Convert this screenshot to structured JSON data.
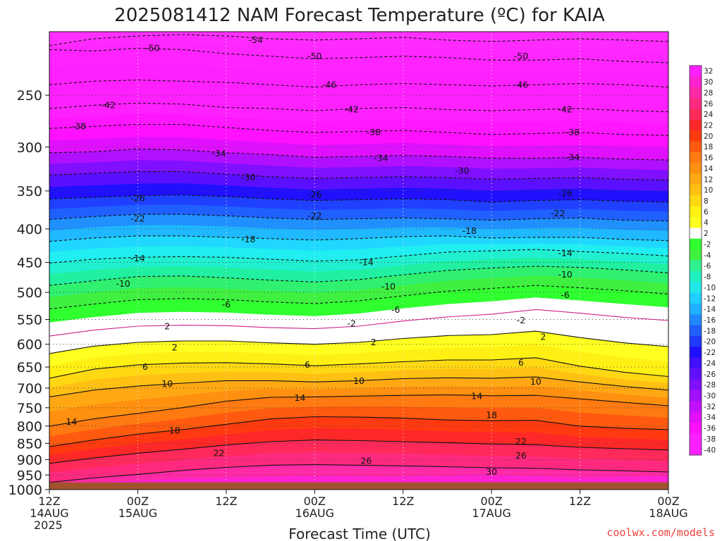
{
  "title": "2025081412 NAM Forecast Temperature (ºC) for KAIA",
  "credit": "coolwx.com/models",
  "chart_data": {
    "type": "heatmap",
    "title": "2025081412 NAM Forecast Temperature (ºC) for KAIA",
    "xlabel": "Forecast Time (UTC)",
    "x_ticks": [
      {
        "hour": 0,
        "lines": [
          "12Z",
          "14AUG",
          "2025"
        ]
      },
      {
        "hour": 12,
        "lines": [
          "00Z",
          "15AUG"
        ]
      },
      {
        "hour": 24,
        "lines": [
          "12Z"
        ]
      },
      {
        "hour": 36,
        "lines": [
          "00Z",
          "16AUG"
        ]
      },
      {
        "hour": 48,
        "lines": [
          "12Z"
        ]
      },
      {
        "hour": 60,
        "lines": [
          "00Z",
          "17AUG"
        ]
      },
      {
        "hour": 72,
        "lines": [
          "12Z"
        ]
      },
      {
        "hour": 84,
        "lines": [
          "00Z",
          "18AUG"
        ]
      }
    ],
    "xlim": [
      0,
      84
    ],
    "y_ticks": [
      250,
      300,
      350,
      400,
      450,
      500,
      550,
      600,
      650,
      700,
      750,
      800,
      850,
      900,
      950,
      1000
    ],
    "ylim": [
      200,
      1000
    ],
    "y_scale": "log-pressure",
    "grid": "dotted",
    "surface_pressure_hPa": 975,
    "colorbar": {
      "labels": [
        32,
        30,
        28,
        26,
        24,
        22,
        20,
        18,
        16,
        14,
        12,
        10,
        8,
        6,
        4,
        2,
        -2,
        -4,
        -6,
        -8,
        -10,
        -12,
        -14,
        -16,
        -18,
        -20,
        -22,
        -24,
        -26,
        -28,
        -30,
        -32,
        -34,
        -36,
        -38,
        -40
      ],
      "colors": [
        "#ff20ff",
        "#ff22d0",
        "#ff2aa6",
        "#ff2a80",
        "#ff2a5a",
        "#ff2828",
        "#ff3a10",
        "#ff5a10",
        "#ff7a10",
        "#ff9010",
        "#ffa814",
        "#ffc014",
        "#ffd814",
        "#fff014",
        "#ffff20",
        "#ffffff",
        "#30ff30",
        "#40f040",
        "#30f090",
        "#20f0c0",
        "#20e8e8",
        "#20d0ff",
        "#20b0ff",
        "#2088ff",
        "#2060ff",
        "#2038ff",
        "#2010ff",
        "#4010ff",
        "#6010ff",
        "#8010ff",
        "#a010ff",
        "#c010ff",
        "#e010ff",
        "#ff10ff",
        "#ff20ff",
        "#ff20ff"
      ]
    },
    "contours": [
      {
        "value": -54,
        "p": [
          210,
          205,
          203,
          202,
          203,
          205,
          206,
          205,
          204,
          206,
          207,
          206,
          205,
          206,
          207
        ]
      },
      {
        "value": -50,
        "p": [
          213,
          214,
          212,
          213,
          216,
          218,
          220,
          219,
          218,
          219,
          221,
          221,
          220,
          222,
          223
        ]
      },
      {
        "value": -46,
        "p": [
          241,
          238,
          237,
          238,
          239,
          241,
          243,
          241,
          240,
          241,
          242,
          241,
          240,
          241,
          243
        ]
      },
      {
        "value": -42,
        "p": [
          262,
          259,
          257,
          258,
          261,
          262,
          264,
          262,
          261,
          263,
          264,
          263,
          262,
          264,
          265
        ]
      },
      {
        "value": -38,
        "p": [
          281,
          279,
          277,
          277,
          280,
          283,
          285,
          284,
          283,
          285,
          287,
          286,
          285,
          287,
          288
        ]
      },
      {
        "value": -34,
        "p": [
          306,
          305,
          302,
          303,
          306,
          308,
          311,
          310,
          309,
          310,
          312,
          312,
          311,
          313,
          314
        ]
      },
      {
        "value": -30,
        "p": [
          331,
          329,
          327,
          327,
          330,
          333,
          335,
          334,
          333,
          334,
          336,
          335,
          334,
          336,
          337
        ]
      },
      {
        "value": -26,
        "p": [
          360,
          358,
          356,
          355,
          357,
          360,
          362,
          361,
          360,
          361,
          364,
          362,
          361,
          363,
          364
        ]
      },
      {
        "value": -22,
        "p": [
          387,
          383,
          380,
          380,
          382,
          385,
          387,
          386,
          385,
          386,
          388,
          386,
          385,
          388,
          389
        ]
      },
      {
        "value": -18,
        "p": [
          418,
          413,
          410,
          410,
          412,
          414,
          416,
          414,
          411,
          410,
          413,
          412,
          412,
          415,
          417
        ]
      },
      {
        "value": -14,
        "p": [
          451,
          445,
          442,
          441,
          442,
          445,
          448,
          446,
          440,
          434,
          432,
          430,
          433,
          436,
          440
        ]
      },
      {
        "value": -10,
        "p": [
          488,
          480,
          473,
          472,
          475,
          479,
          482,
          478,
          470,
          463,
          459,
          456,
          458,
          462,
          467
        ]
      },
      {
        "value": -6,
        "p": [
          530,
          521,
          513,
          511,
          513,
          517,
          520,
          515,
          506,
          498,
          493,
          488,
          492,
          497,
          503
        ]
      },
      {
        "value": -2,
        "p": [
          583,
          571,
          563,
          561,
          562,
          566,
          568,
          563,
          553,
          545,
          540,
          531,
          538,
          546,
          552
        ],
        "style": "magenta"
      },
      {
        "value": 2,
        "p": [
          620,
          604,
          596,
          593,
          593,
          597,
          600,
          596,
          588,
          582,
          580,
          573,
          586,
          597,
          605
        ]
      },
      {
        "value": 6,
        "p": [
          676,
          655,
          645,
          641,
          640,
          643,
          647,
          643,
          638,
          634,
          634,
          629,
          648,
          662,
          672
        ]
      },
      {
        "value": 10,
        "p": [
          722,
          705,
          695,
          688,
          682,
          682,
          685,
          682,
          677,
          675,
          676,
          673,
          685,
          696,
          705
        ]
      },
      {
        "value": 14,
        "p": [
          800,
          780,
          765,
          750,
          733,
          723,
          722,
          720,
          718,
          717,
          719,
          718,
          727,
          736,
          745
        ]
      },
      {
        "value": 18,
        "p": [
          860,
          840,
          823,
          810,
          795,
          780,
          774,
          775,
          778,
          783,
          785,
          784,
          800,
          806,
          810
        ]
      },
      {
        "value": 22,
        "p": [
          912,
          895,
          880,
          868,
          855,
          845,
          840,
          842,
          845,
          848,
          852,
          854,
          862,
          866,
          870
        ]
      },
      {
        "value": 26,
        "p": [
          975,
          960,
          948,
          935,
          925,
          918,
          916,
          918,
          920,
          923,
          926,
          928,
          933,
          936,
          940
        ]
      }
    ],
    "contour_labels": [
      {
        "value": -50,
        "x_hour": 14,
        "p": 212
      },
      {
        "value": -54,
        "x_hour": 28,
        "p": 206
      },
      {
        "value": -50,
        "x_hour": 36,
        "p": 218
      },
      {
        "value": -50,
        "x_hour": 64,
        "p": 218
      },
      {
        "value": -46,
        "x_hour": 38,
        "p": 241
      },
      {
        "value": -46,
        "x_hour": 64,
        "p": 241
      },
      {
        "value": -42,
        "x_hour": 8,
        "p": 259
      },
      {
        "value": -42,
        "x_hour": 41,
        "p": 263
      },
      {
        "value": -42,
        "x_hour": 70,
        "p": 263
      },
      {
        "value": -38,
        "x_hour": 4,
        "p": 279
      },
      {
        "value": -38,
        "x_hour": 44,
        "p": 285
      },
      {
        "value": -38,
        "x_hour": 71,
        "p": 285
      },
      {
        "value": -34,
        "x_hour": 23,
        "p": 307
      },
      {
        "value": -34,
        "x_hour": 45,
        "p": 312
      },
      {
        "value": -34,
        "x_hour": 71,
        "p": 311
      },
      {
        "value": -30,
        "x_hour": 27,
        "p": 334
      },
      {
        "value": -30,
        "x_hour": 56,
        "p": 326
      },
      {
        "value": -26,
        "x_hour": 12,
        "p": 359
      },
      {
        "value": -26,
        "x_hour": 36,
        "p": 355
      },
      {
        "value": -26,
        "x_hour": 70,
        "p": 353
      },
      {
        "value": -22,
        "x_hour": 12,
        "p": 386
      },
      {
        "value": -22,
        "x_hour": 36,
        "p": 382
      },
      {
        "value": -22,
        "x_hour": 69,
        "p": 379
      },
      {
        "value": -18,
        "x_hour": 27,
        "p": 415
      },
      {
        "value": -18,
        "x_hour": 57,
        "p": 403
      },
      {
        "value": -14,
        "x_hour": 12,
        "p": 444
      },
      {
        "value": -14,
        "x_hour": 43,
        "p": 450
      },
      {
        "value": -14,
        "x_hour": 70,
        "p": 436
      },
      {
        "value": -10,
        "x_hour": 10,
        "p": 485
      },
      {
        "value": -10,
        "x_hour": 46,
        "p": 490
      },
      {
        "value": -10,
        "x_hour": 70,
        "p": 470
      },
      {
        "value": -6,
        "x_hour": 24,
        "p": 522
      },
      {
        "value": -6,
        "x_hour": 47,
        "p": 532
      },
      {
        "value": -6,
        "x_hour": 70,
        "p": 505
      },
      {
        "value": -2,
        "x_hour": 41,
        "p": 558
      },
      {
        "value": -2,
        "x_hour": 64,
        "p": 552
      },
      {
        "value": 2,
        "x_hour": 16,
        "p": 564
      },
      {
        "value": 2,
        "x_hour": 17,
        "p": 607
      },
      {
        "value": 2,
        "x_hour": 44,
        "p": 596
      },
      {
        "value": 2,
        "x_hour": 67,
        "p": 585
      },
      {
        "value": 6,
        "x_hour": 13,
        "p": 650
      },
      {
        "value": 6,
        "x_hour": 35,
        "p": 645
      },
      {
        "value": 6,
        "x_hour": 64,
        "p": 640
      },
      {
        "value": 10,
        "x_hour": 16,
        "p": 690
      },
      {
        "value": 10,
        "x_hour": 42,
        "p": 683
      },
      {
        "value": 10,
        "x_hour": 66,
        "p": 685
      },
      {
        "value": 14,
        "x_hour": 3,
        "p": 788
      },
      {
        "value": 14,
        "x_hour": 34,
        "p": 725
      },
      {
        "value": 14,
        "x_hour": 58,
        "p": 720
      },
      {
        "value": 18,
        "x_hour": 17,
        "p": 813
      },
      {
        "value": 18,
        "x_hour": 60,
        "p": 770
      },
      {
        "value": 22,
        "x_hour": 23,
        "p": 880
      },
      {
        "value": 22,
        "x_hour": 64,
        "p": 845
      },
      {
        "value": 26,
        "x_hour": 43,
        "p": 905
      },
      {
        "value": 26,
        "x_hour": 64,
        "p": 888
      },
      {
        "value": 30,
        "x_hour": 60,
        "p": 940
      }
    ]
  }
}
